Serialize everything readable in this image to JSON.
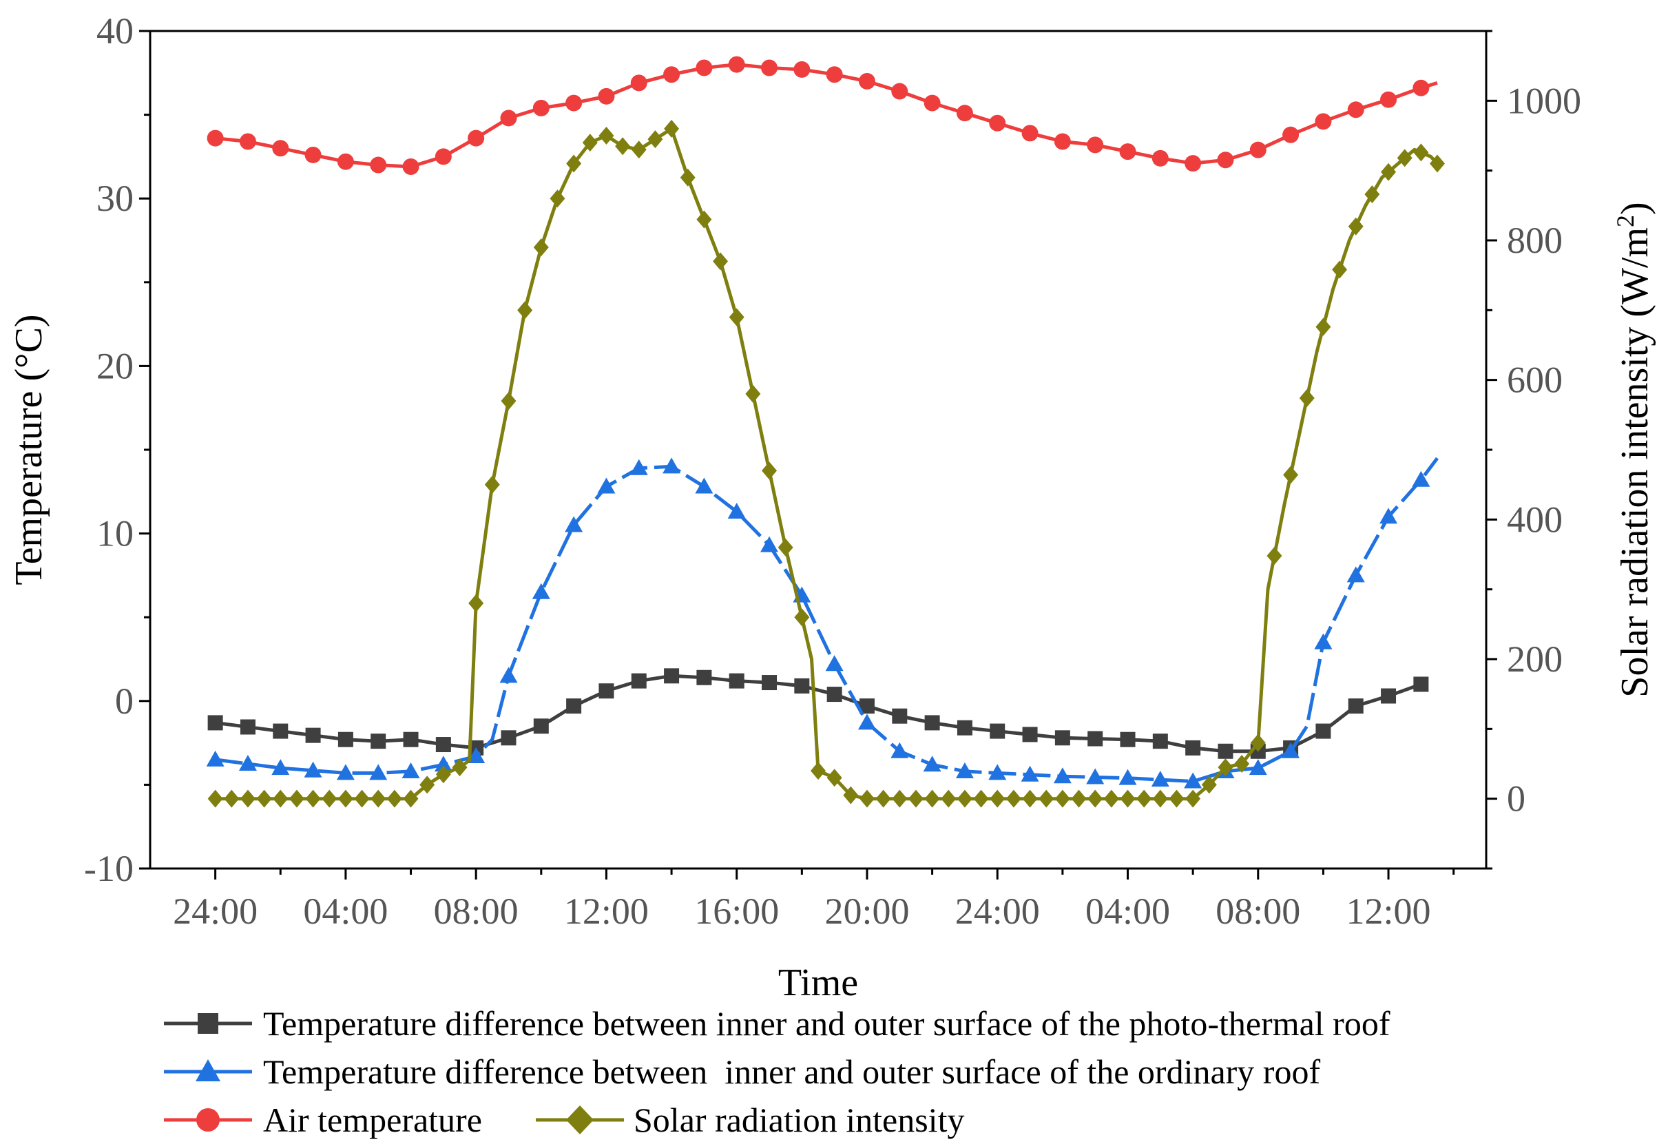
{
  "chart_data": {
    "type": "line",
    "x_label": "Time",
    "y_left_label": "Temperature (°C)",
    "y_right_label_base": "Solar radiation intensity (W/m",
    "y_right_label_sup": "2",
    "y_right_label_end": ")",
    "x_range_hours": [
      -2,
      39
    ],
    "y_left_range": [
      -10,
      40
    ],
    "y_right_range": [
      -100,
      1100
    ],
    "x_ticks": [
      {
        "hour": 0,
        "label": "24:00"
      },
      {
        "hour": 4,
        "label": "04:00"
      },
      {
        "hour": 8,
        "label": "08:00"
      },
      {
        "hour": 12,
        "label": "12:00"
      },
      {
        "hour": 16,
        "label": "16:00"
      },
      {
        "hour": 20,
        "label": "20:00"
      },
      {
        "hour": 24,
        "label": "24:00"
      },
      {
        "hour": 28,
        "label": "04:00"
      },
      {
        "hour": 32,
        "label": "08:00"
      },
      {
        "hour": 36,
        "label": "12:00"
      }
    ],
    "y_left_ticks": [
      -10,
      0,
      10,
      20,
      30,
      40
    ],
    "y_left_tick_labels": [
      "-10",
      "0",
      "10",
      "20",
      "30",
      "40"
    ],
    "y_right_ticks": [
      0,
      200,
      400,
      600,
      800,
      1000
    ],
    "y_right_tick_labels": [
      "0",
      "200",
      "400",
      "600",
      "800",
      "1000"
    ],
    "series": [
      {
        "name": "Temperature difference between inner and outer surface of the photo-thermal roof",
        "axis": "left",
        "color": "#3f3f3f",
        "marker": "square",
        "dash": "solid",
        "sample_step": 2,
        "points": [
          [
            0,
            -1.3
          ],
          [
            2,
            -1.8
          ],
          [
            4,
            -2.3
          ],
          [
            5,
            -2.4
          ],
          [
            6,
            -2.3
          ],
          [
            7,
            -2.6
          ],
          [
            8,
            -2.8
          ],
          [
            9,
            -2.2
          ],
          [
            10,
            -1.5
          ],
          [
            11,
            -0.3
          ],
          [
            12,
            0.6
          ],
          [
            13,
            1.2
          ],
          [
            14,
            1.5
          ],
          [
            15,
            1.4
          ],
          [
            16,
            1.2
          ],
          [
            17,
            1.1
          ],
          [
            18,
            0.9
          ],
          [
            19,
            0.4
          ],
          [
            20,
            -0.3
          ],
          [
            21,
            -0.9
          ],
          [
            22,
            -1.3
          ],
          [
            23,
            -1.6
          ],
          [
            24,
            -1.8
          ],
          [
            26,
            -2.2
          ],
          [
            28,
            -2.3
          ],
          [
            29,
            -2.4
          ],
          [
            30,
            -2.8
          ],
          [
            31,
            -3.0
          ],
          [
            32,
            -3.0
          ],
          [
            33,
            -2.8
          ],
          [
            34,
            -1.8
          ],
          [
            35,
            -0.3
          ],
          [
            36,
            0.3
          ],
          [
            37,
            1.0
          ]
        ]
      },
      {
        "name": "Temperature difference between  inner and outer surface of the ordinary roof",
        "axis": "left",
        "color": "#1f72e0",
        "marker": "triangle",
        "dash": "dash",
        "sample_step": 2,
        "points": [
          [
            0,
            -3.5
          ],
          [
            2,
            -4.0
          ],
          [
            4,
            -4.3
          ],
          [
            5,
            -4.3
          ],
          [
            6,
            -4.2
          ],
          [
            7,
            -3.8
          ],
          [
            8,
            -3.3
          ],
          [
            8.5,
            -2.3
          ],
          [
            9,
            1.5
          ],
          [
            10,
            6.5
          ],
          [
            11,
            10.5
          ],
          [
            12,
            12.8
          ],
          [
            13,
            13.9
          ],
          [
            14,
            14.0
          ],
          [
            15,
            12.8
          ],
          [
            16,
            11.3
          ],
          [
            17,
            9.3
          ],
          [
            18,
            6.3
          ],
          [
            19,
            2.2
          ],
          [
            20,
            -1.3
          ],
          [
            21,
            -3.0
          ],
          [
            22,
            -3.8
          ],
          [
            23,
            -4.2
          ],
          [
            24,
            -4.3
          ],
          [
            26,
            -4.5
          ],
          [
            28,
            -4.6
          ],
          [
            29,
            -4.7
          ],
          [
            30,
            -4.8
          ],
          [
            31,
            -4.2
          ],
          [
            32,
            -4.0
          ],
          [
            33,
            -3.0
          ],
          [
            33.5,
            -1.5
          ],
          [
            34,
            3.5
          ],
          [
            35,
            7.5
          ],
          [
            36,
            11.0
          ],
          [
            37,
            13.2
          ],
          [
            37.5,
            14.5
          ]
        ]
      },
      {
        "name": "Air temperature",
        "axis": "left",
        "color": "#ee3d3d",
        "marker": "circle",
        "dash": "solid",
        "sample_step": 2,
        "points": [
          [
            0,
            33.6
          ],
          [
            1,
            33.4
          ],
          [
            2,
            33.0
          ],
          [
            3,
            32.6
          ],
          [
            4,
            32.2
          ],
          [
            5,
            32.0
          ],
          [
            6,
            31.9
          ],
          [
            7,
            32.5
          ],
          [
            8,
            33.6
          ],
          [
            9,
            34.8
          ],
          [
            10,
            35.4
          ],
          [
            11,
            35.7
          ],
          [
            12,
            36.1
          ],
          [
            13,
            36.9
          ],
          [
            14,
            37.4
          ],
          [
            15,
            37.8
          ],
          [
            16,
            38.0
          ],
          [
            17,
            37.8
          ],
          [
            18,
            37.7
          ],
          [
            19,
            37.4
          ],
          [
            20,
            37.0
          ],
          [
            21,
            36.4
          ],
          [
            22,
            35.7
          ],
          [
            23,
            35.1
          ],
          [
            24,
            34.5
          ],
          [
            25,
            33.9
          ],
          [
            26,
            33.4
          ],
          [
            27,
            33.2
          ],
          [
            28,
            32.8
          ],
          [
            29,
            32.4
          ],
          [
            30,
            32.1
          ],
          [
            31,
            32.3
          ],
          [
            32,
            32.9
          ],
          [
            33,
            33.8
          ],
          [
            34,
            34.6
          ],
          [
            35,
            35.3
          ],
          [
            36,
            35.9
          ],
          [
            37,
            36.6
          ],
          [
            37.5,
            36.9
          ]
        ]
      },
      {
        "name": "Solar radiation intensity",
        "axis": "right",
        "color": "#7f7f10",
        "marker": "diamond",
        "dash": "solid",
        "sample_step": 1,
        "points": [
          [
            0,
            0
          ],
          [
            6,
            0
          ],
          [
            6.5,
            20
          ],
          [
            7,
            35
          ],
          [
            7.5,
            45
          ],
          [
            7.8,
            55
          ],
          [
            8,
            280
          ],
          [
            8.5,
            450
          ],
          [
            9,
            570
          ],
          [
            9.5,
            700
          ],
          [
            10,
            790
          ],
          [
            10.5,
            860
          ],
          [
            11,
            910
          ],
          [
            11.5,
            940
          ],
          [
            12,
            950
          ],
          [
            12.5,
            935
          ],
          [
            13,
            930
          ],
          [
            13.5,
            945
          ],
          [
            14,
            960
          ],
          [
            14.5,
            890
          ],
          [
            15,
            830
          ],
          [
            15.5,
            770
          ],
          [
            16,
            690
          ],
          [
            16.5,
            580
          ],
          [
            17,
            470
          ],
          [
            17.5,
            360
          ],
          [
            18,
            260
          ],
          [
            18.3,
            200
          ],
          [
            18.5,
            40
          ],
          [
            19,
            30
          ],
          [
            19.5,
            5
          ],
          [
            20,
            0
          ],
          [
            30,
            0
          ],
          [
            30.5,
            20
          ],
          [
            31,
            45
          ],
          [
            31.5,
            50
          ],
          [
            32,
            80
          ],
          [
            32.3,
            300
          ],
          [
            32.8,
            420
          ],
          [
            33.3,
            530
          ],
          [
            33.8,
            640
          ],
          [
            34.3,
            730
          ],
          [
            34.8,
            800
          ],
          [
            35.3,
            850
          ],
          [
            35.8,
            890
          ],
          [
            36.3,
            910
          ],
          [
            36.8,
            930
          ],
          [
            37.3,
            920
          ],
          [
            37.5,
            910
          ]
        ]
      }
    ]
  },
  "legend": {
    "entry_1": "Temperature difference between inner and outer surface of the photo-thermal roof",
    "entry_2": "Temperature difference between  inner and outer surface of the ordinary roof",
    "entry_3": "Air temperature",
    "entry_4": "Solar radiation intensity"
  }
}
